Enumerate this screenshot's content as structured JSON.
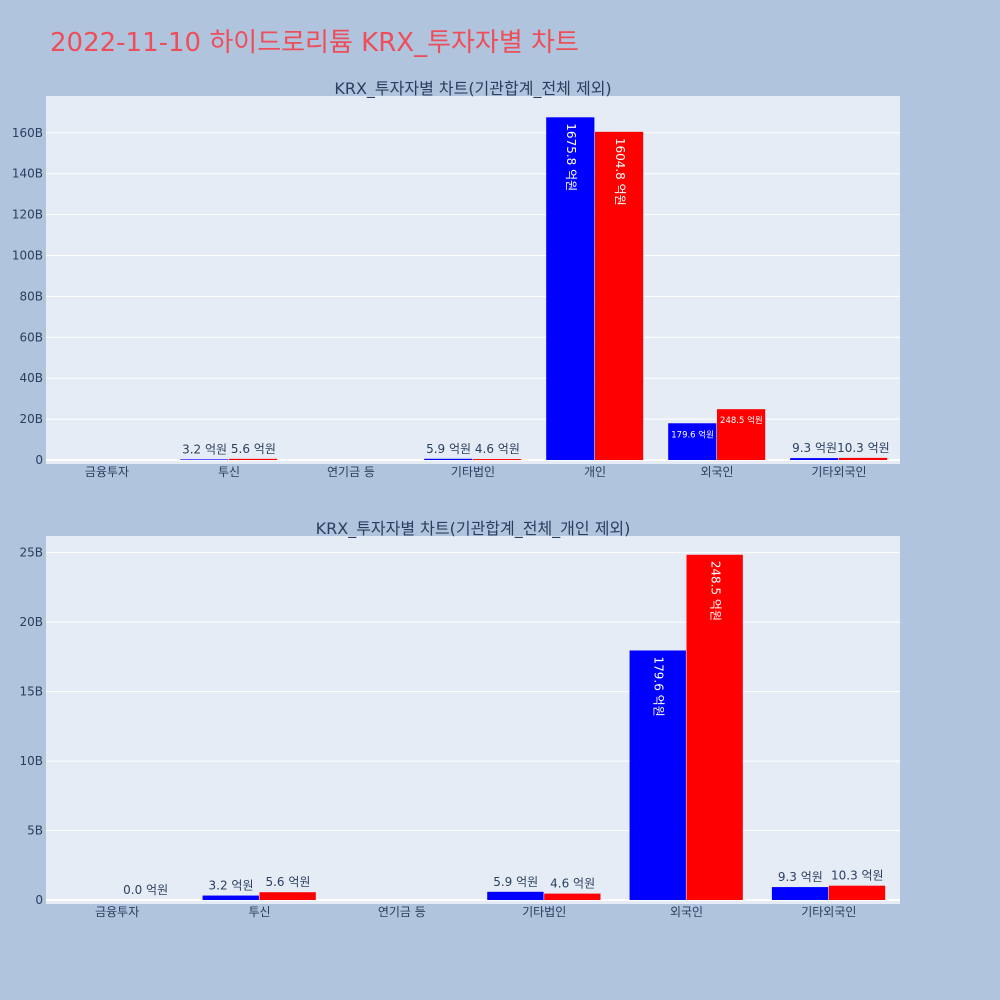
{
  "page": {
    "title": "2022-11-10 하이드로리튬 KRX_투자자별 차트"
  },
  "colors": {
    "background": "#b0c4de",
    "plot_bg": "#e5ecf6",
    "title": "#ee4e5a",
    "buy": "#0000ff",
    "sell": "#ff0000",
    "text": "#2a3f5f"
  },
  "chart_data": [
    {
      "type": "bar",
      "title": "KRX_투자자별 차트(기관합계_전체 제외)",
      "categories": [
        "금융투자",
        "투신",
        "연기금 등",
        "기타법인",
        "개인",
        "외국인",
        "기타외국인"
      ],
      "ylim": [
        0,
        178
      ],
      "yticks": [
        0,
        20,
        40,
        60,
        80,
        100,
        120,
        140,
        160
      ],
      "ytick_labels": [
        "0",
        "20B",
        "40B",
        "60B",
        "80B",
        "100B",
        "120B",
        "140B",
        "160B"
      ],
      "grid": true,
      "series": [
        {
          "color": "#0000ff",
          "values": [
            0,
            0.32,
            0,
            0.59,
            167.58,
            17.96,
            0.93
          ],
          "labels": [
            "",
            "3.2 억원",
            "",
            "5.9 억원",
            "1675.8 억원",
            "179.6 억원",
            "9.3 억원"
          ]
        },
        {
          "color": "#ff0000",
          "values": [
            0,
            0.56,
            0,
            0.46,
            160.48,
            24.85,
            1.03
          ],
          "labels": [
            "",
            "5.6 억원",
            "",
            "4.6 억원",
            "1604.8 억원",
            "248.5 억원",
            "10.3 억원"
          ]
        }
      ]
    },
    {
      "type": "bar",
      "title": "KRX_투자자별 차트(기관합계_전체_개인 제외)",
      "categories": [
        "금융투자",
        "투신",
        "연기금 등",
        "기타법인",
        "외국인",
        "기타외국인"
      ],
      "ylim": [
        0,
        26.2
      ],
      "yticks": [
        0,
        5,
        10,
        15,
        20,
        25
      ],
      "ytick_labels": [
        "0",
        "5B",
        "10B",
        "15B",
        "20B",
        "25B"
      ],
      "grid": true,
      "series": [
        {
          "color": "#0000ff",
          "values": [
            0,
            0.32,
            0,
            0.59,
            17.96,
            0.93
          ],
          "labels": [
            "",
            "3.2 억원",
            "",
            "5.9 억원",
            "179.6 억원",
            "9.3 억원"
          ]
        },
        {
          "color": "#ff0000",
          "values": [
            0,
            0.56,
            0,
            0.46,
            24.85,
            1.03
          ],
          "labels": [
            "0.0 억원",
            "5.6 억원",
            "",
            "4.6 억원",
            "248.5 억원",
            "10.3 억원"
          ]
        }
      ]
    }
  ]
}
